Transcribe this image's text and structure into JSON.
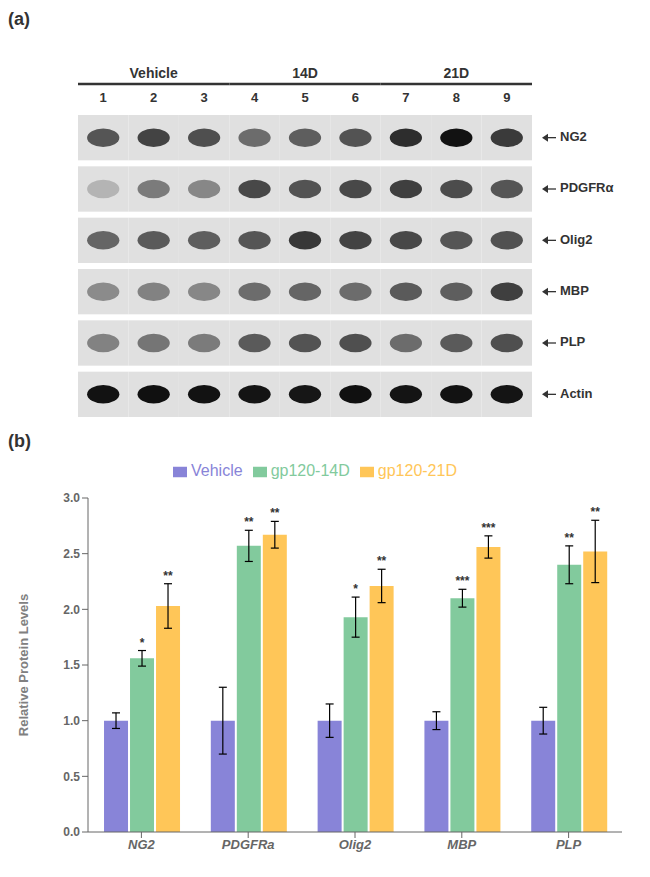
{
  "chart_data": [
    {
      "type": "heatmap",
      "title": "(a)",
      "x": [
        "1",
        "2",
        "3",
        "4",
        "5",
        "6",
        "7",
        "8",
        "9"
      ],
      "y": [
        "NG2",
        "PDGFRα",
        "Olig2",
        "MBP",
        "PLP",
        "Actin"
      ],
      "cells": [
        [
          0.62,
          0.7,
          0.65,
          0.52,
          0.58,
          0.63,
          0.8,
          0.92,
          0.74
        ],
        [
          0.2,
          0.45,
          0.4,
          0.68,
          0.63,
          0.68,
          0.72,
          0.66,
          0.62
        ],
        [
          0.55,
          0.6,
          0.58,
          0.62,
          0.75,
          0.7,
          0.68,
          0.62,
          0.64
        ],
        [
          0.38,
          0.42,
          0.4,
          0.52,
          0.55,
          0.52,
          0.6,
          0.58,
          0.72
        ],
        [
          0.42,
          0.48,
          0.45,
          0.6,
          0.63,
          0.65,
          0.52,
          0.6,
          0.65
        ],
        [
          0.92,
          0.93,
          0.92,
          0.91,
          0.9,
          0.93,
          0.91,
          0.92,
          0.91
        ]
      ],
      "groups": [
        {
          "name": "Vehicle",
          "x": [
            "1",
            "2",
            "3"
          ]
        },
        {
          "name": "14D",
          "x": [
            "4",
            "5",
            "6"
          ]
        },
        {
          "name": "21D",
          "x": [
            "7",
            "8",
            "9"
          ]
        }
      ]
    },
    {
      "type": "bar",
      "title": "(b)",
      "categories": [
        "NG2",
        "PDGFRa",
        "Olig2",
        "MBP",
        "PLP"
      ],
      "series": [
        {
          "name": "Vehicle",
          "color": "#8884d8",
          "values": [
            1.0,
            1.0,
            1.0,
            1.0,
            1.0
          ],
          "errors": [
            0.07,
            0.3,
            0.15,
            0.08,
            0.12
          ]
        },
        {
          "name": "gp120-14D",
          "color": "#82ca9d",
          "values": [
            1.56,
            2.57,
            1.93,
            2.1,
            2.4
          ],
          "errors": [
            0.07,
            0.14,
            0.18,
            0.08,
            0.17
          ],
          "annotations": [
            "*",
            "**",
            "*",
            "***",
            "**"
          ]
        },
        {
          "name": "gp120-21D",
          "color": "#ffc658",
          "values": [
            2.03,
            2.67,
            2.21,
            2.56,
            2.52
          ],
          "errors": [
            0.2,
            0.12,
            0.15,
            0.1,
            0.28
          ],
          "annotations": [
            "**",
            "**",
            "**",
            "***",
            "**"
          ]
        }
      ],
      "ylabel": "Relative Protein Levels",
      "ylim": [
        0.0,
        3.0
      ],
      "yticks": [
        {
          "value": 0.0,
          "label": "0.0"
        },
        {
          "value": 0.5,
          "label": "0.5"
        },
        {
          "value": 1.0,
          "label": "1.0"
        },
        {
          "value": 1.5,
          "label": "1.5"
        },
        {
          "value": 2.0,
          "label": "2.0"
        },
        {
          "value": 2.5,
          "label": "2.5"
        },
        {
          "value": 3.0,
          "label": "3.0"
        }
      ],
      "legend": "top"
    }
  ]
}
